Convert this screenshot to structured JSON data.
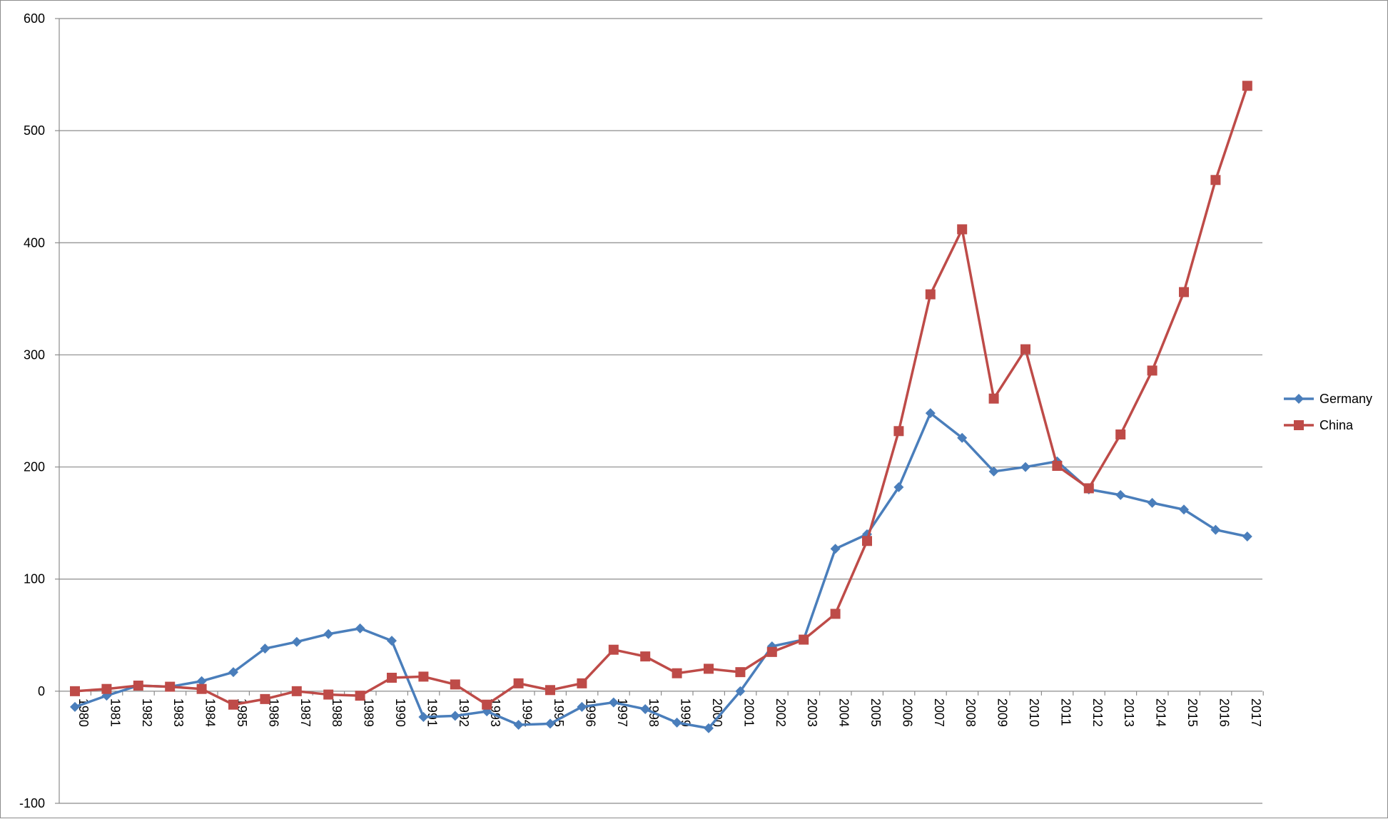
{
  "chart_data": {
    "type": "line",
    "title": "",
    "xlabel": "",
    "ylabel": "",
    "ylim": [
      -100,
      600
    ],
    "yticks": [
      -100,
      0,
      100,
      200,
      300,
      400,
      500,
      600
    ],
    "grid": "horizontal",
    "legend_position": "right",
    "categories": [
      "1980",
      "1981",
      "1982",
      "1983",
      "1984",
      "1985",
      "1986",
      "1987",
      "1988",
      "1989",
      "1990",
      "1991",
      "1992",
      "1993",
      "1994",
      "1995",
      "1996",
      "1997",
      "1998",
      "1999",
      "2000",
      "2001",
      "2002",
      "2003",
      "2004",
      "2005",
      "2006",
      "2007",
      "2008",
      "2009",
      "2010",
      "2011",
      "2012",
      "2013",
      "2014",
      "2015",
      "2016",
      "2017"
    ],
    "series": [
      {
        "name": "Germany",
        "color": "#4a7ebb",
        "marker": "diamond",
        "values": [
          -14,
          -4,
          5,
          4,
          9,
          17,
          38,
          44,
          51,
          56,
          45,
          -23,
          -22,
          -18,
          -30,
          -29,
          -14,
          -10,
          -16,
          -28,
          -33,
          0,
          40,
          46,
          127,
          140,
          182,
          248,
          226,
          196,
          200,
          205,
          180,
          175,
          168,
          162,
          144,
          138
        ]
      },
      {
        "name": "China",
        "color": "#be4b48",
        "marker": "square",
        "values": [
          0,
          2,
          5,
          4,
          2,
          -12,
          -7,
          0,
          -3,
          -4,
          12,
          13,
          6,
          -12,
          7,
          1,
          7,
          37,
          31,
          16,
          20,
          17,
          35,
          46,
          69,
          134,
          232,
          354,
          412,
          261,
          305,
          201,
          181,
          229,
          286,
          356,
          456,
          540
        ]
      }
    ]
  }
}
